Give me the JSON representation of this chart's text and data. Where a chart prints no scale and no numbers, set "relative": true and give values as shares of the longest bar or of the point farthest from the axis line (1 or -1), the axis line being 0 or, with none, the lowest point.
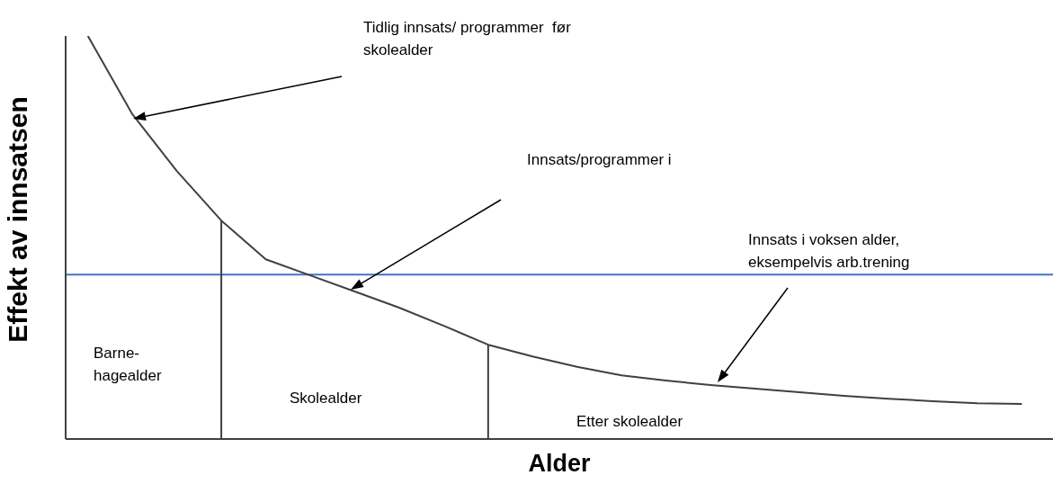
{
  "chart_data": {
    "type": "line",
    "relative": true,
    "xlabel": "Alder",
    "ylabel": "Effekt av innsatsen",
    "categories": [
      null,
      null,
      null,
      null,
      null,
      null,
      null,
      null,
      null,
      null,
      null,
      null,
      null,
      null,
      null,
      null,
      null,
      null,
      null,
      null,
      null,
      null
    ],
    "series": [
      {
        "color": "#404040",
        "values": [
          1,
          0.806,
          0.665,
          0.542,
          0.446,
          0.406,
          0.366,
          0.326,
          0.281,
          0.234,
          0.205,
          0.179,
          0.158,
          0.145,
          0.134,
          0.125,
          0.116,
          0.107,
          0.1,
          0.094,
          0.089,
          0.087
        ]
      }
    ],
    "ref_lines": [
      {
        "axis": "y",
        "value": 0.408,
        "color": "#4472c4"
      }
    ],
    "annotations": [
      "Tidlig innsats/ programmer  før\nskolealder",
      "Innsats/programmer i",
      "Innsats i voksen alder,\neksempelvis arb.trening",
      "Barne-\nhagealder",
      "Skolealder",
      "Etter skolealder"
    ],
    "marker": "none",
    "line_style": "solid"
  }
}
